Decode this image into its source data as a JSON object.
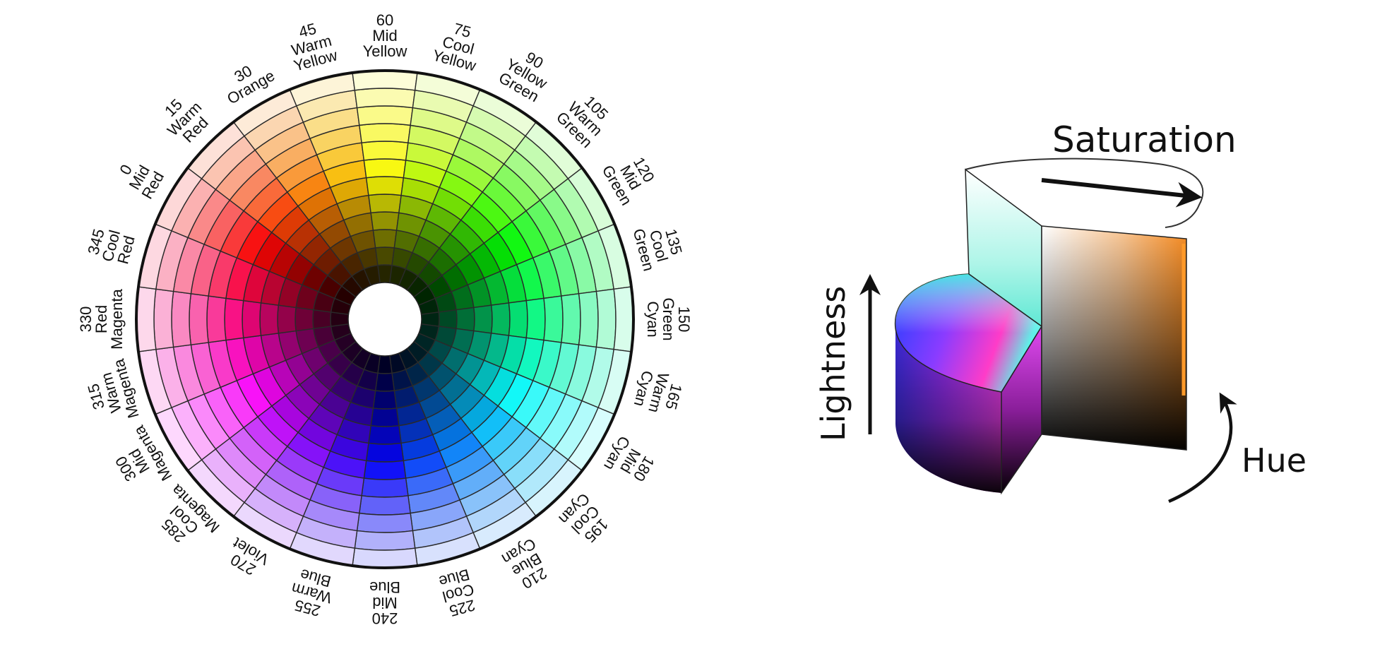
{
  "color_wheel": {
    "hue_steps": [
      0,
      15,
      30,
      45,
      60,
      75,
      90,
      105,
      120,
      135,
      150,
      165,
      180,
      195,
      210,
      225,
      240,
      255,
      270,
      285,
      300,
      315,
      330,
      345
    ],
    "saturation_lightness_rings": 12,
    "labels": [
      {
        "hue": 0,
        "lines": [
          "0",
          "Mid",
          "Red"
        ]
      },
      {
        "hue": 15,
        "lines": [
          "15",
          "Warm",
          "Red"
        ]
      },
      {
        "hue": 30,
        "lines": [
          "30",
          "Orange"
        ]
      },
      {
        "hue": 45,
        "lines": [
          "45",
          "Warm",
          "Yellow"
        ]
      },
      {
        "hue": 60,
        "lines": [
          "60",
          "Mid",
          "Yellow"
        ]
      },
      {
        "hue": 75,
        "lines": [
          "75",
          "Cool",
          "Yellow"
        ]
      },
      {
        "hue": 90,
        "lines": [
          "90",
          "Yellow",
          "Green"
        ]
      },
      {
        "hue": 105,
        "lines": [
          "105",
          "Warm",
          "Green"
        ]
      },
      {
        "hue": 120,
        "lines": [
          "120",
          "Mid",
          "Green"
        ]
      },
      {
        "hue": 135,
        "lines": [
          "135",
          "Cool",
          "Green"
        ]
      },
      {
        "hue": 150,
        "lines": [
          "150",
          "Green",
          "Cyan"
        ]
      },
      {
        "hue": 165,
        "lines": [
          "165",
          "Warm",
          "Cyan"
        ]
      },
      {
        "hue": 180,
        "lines": [
          "180",
          "Mid",
          "Cyan"
        ]
      },
      {
        "hue": 195,
        "lines": [
          "195",
          "Cool",
          "Cyan"
        ]
      },
      {
        "hue": 210,
        "lines": [
          "210",
          "Blue",
          "Cyan"
        ]
      },
      {
        "hue": 225,
        "lines": [
          "225",
          "Cool",
          "Blue"
        ]
      },
      {
        "hue": 240,
        "lines": [
          "240",
          "Mid",
          "Blue"
        ]
      },
      {
        "hue": 255,
        "lines": [
          "255",
          "Warm",
          "Blue"
        ]
      },
      {
        "hue": 270,
        "lines": [
          "270",
          "Violet"
        ]
      },
      {
        "hue": 285,
        "lines": [
          "285",
          "Cool",
          "Magenta"
        ]
      },
      {
        "hue": 300,
        "lines": [
          "300",
          "Mid",
          "Magenta"
        ]
      },
      {
        "hue": 315,
        "lines": [
          "315",
          "Warm",
          "Magenta"
        ]
      },
      {
        "hue": 330,
        "lines": [
          "330",
          "Red",
          "Magenta"
        ]
      },
      {
        "hue": 345,
        "lines": [
          "345",
          "Cool",
          "Red"
        ]
      }
    ]
  },
  "hsl_model": {
    "saturation_label": "Saturation",
    "lightness_label": "Lightness",
    "hue_label": "Hue",
    "arrow_color": "#111111"
  }
}
